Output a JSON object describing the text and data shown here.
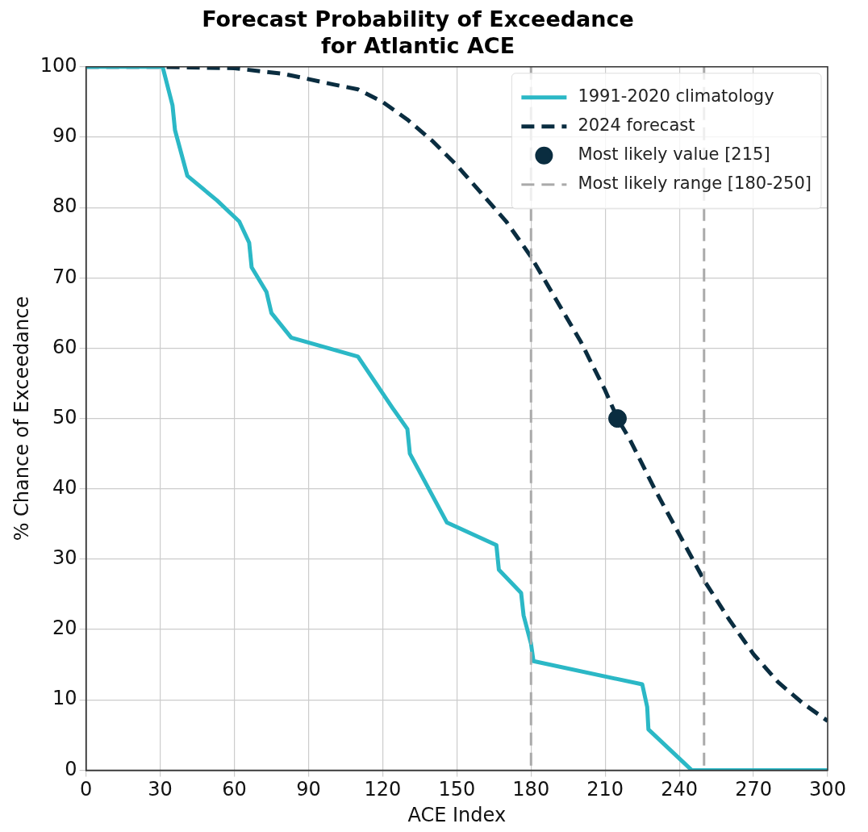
{
  "chart_data": {
    "type": "line",
    "title": [
      "Forecast Probability of Exceedance",
      "for Atlantic ACE"
    ],
    "xlabel": "ACE Index",
    "ylabel": "% Chance of Exceedance",
    "xlim": [
      0,
      300
    ],
    "xticks": [
      0,
      30,
      60,
      90,
      120,
      150,
      180,
      210,
      240,
      270,
      300
    ],
    "ylim": [
      0,
      100
    ],
    "yticks": [
      0,
      10,
      20,
      30,
      40,
      50,
      60,
      70,
      80,
      90,
      100
    ],
    "grid": true,
    "legend": "top right",
    "series": [
      {
        "name": "1991-2020 climatology",
        "color": "#2bb8c6",
        "line_style": "solid",
        "x": [
          0,
          31,
          35,
          36,
          41,
          53,
          62,
          66,
          67,
          73,
          75,
          83,
          110,
          124,
          130,
          131,
          146,
          166,
          167,
          176,
          177,
          180,
          181,
          225,
          227,
          227.5,
          245,
          300
        ],
        "values": [
          100,
          100,
          94.5,
          91,
          84.5,
          81,
          78,
          75,
          71.5,
          68,
          65,
          61.5,
          58.8,
          51.5,
          48.5,
          45,
          35.2,
          32,
          28.5,
          25.2,
          22,
          18,
          15.5,
          12.2,
          9,
          5.8,
          0,
          0
        ]
      },
      {
        "name": "2024 forecast",
        "color": "#0a2d40",
        "line_style": "dashed",
        "x": [
          0,
          30,
          60,
          80,
          100,
          110,
          120,
          130,
          140,
          150,
          160,
          170,
          180,
          190,
          200,
          210,
          215,
          220,
          230,
          240,
          250,
          260,
          270,
          280,
          290,
          300
        ],
        "values": [
          100,
          100,
          99.8,
          99,
          97.5,
          96.8,
          95,
          92.5,
          89.5,
          86,
          82,
          78,
          73,
          67,
          61,
          54,
          50,
          47,
          40,
          33.5,
          27,
          21.5,
          16.5,
          12.5,
          9.5,
          7
        ]
      },
      {
        "name": "Most likely value [215]",
        "type": "scatter",
        "marker": "circle",
        "color": "#0a2d40",
        "x": [
          215
        ],
        "values": [
          50
        ]
      }
    ],
    "ref_lines": [
      {
        "axis": "x",
        "value": 180,
        "label": "Most likely range [180-250]",
        "color": "#aaaaaa",
        "line_style": "dashed"
      },
      {
        "axis": "x",
        "value": 250,
        "color": "#aaaaaa",
        "line_style": "dashed"
      }
    ]
  }
}
